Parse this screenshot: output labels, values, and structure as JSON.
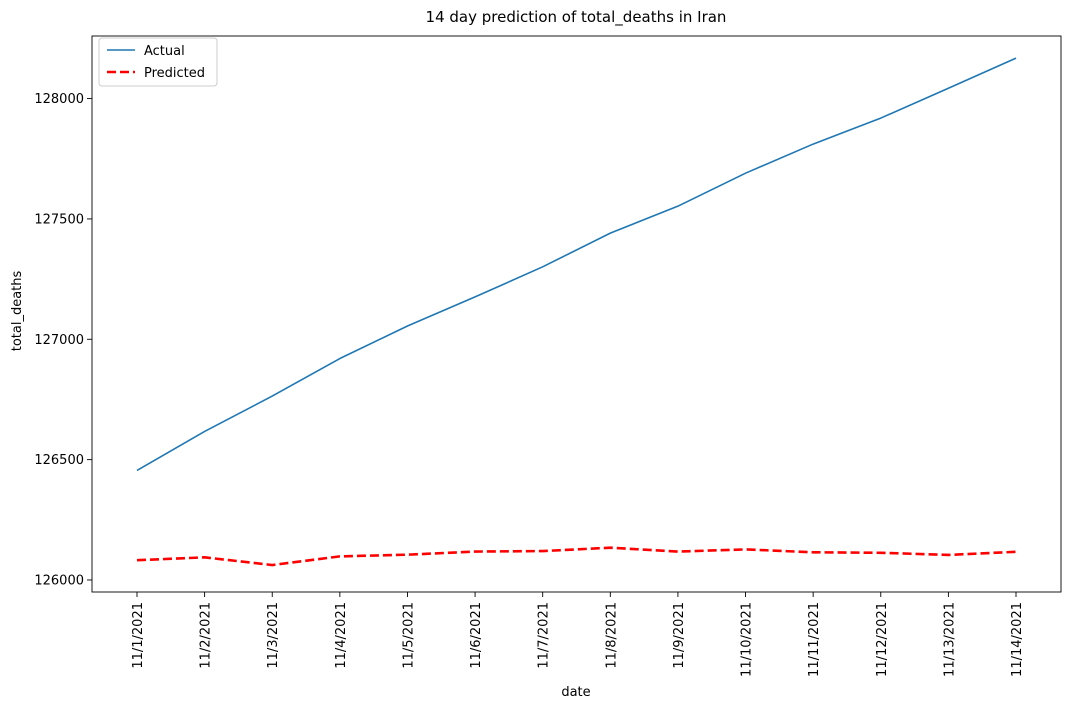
{
  "chart_data": {
    "type": "line",
    "title": "14 day prediction of total_deaths in Iran",
    "xlabel": "date",
    "ylabel": "total_deaths",
    "categories": [
      "11/1/2021",
      "11/2/2021",
      "11/3/2021",
      "11/4/2021",
      "11/5/2021",
      "11/6/2021",
      "11/7/2021",
      "11/8/2021",
      "11/9/2021",
      "11/10/2021",
      "11/11/2021",
      "11/12/2021",
      "11/13/2021",
      "11/14/2021"
    ],
    "yticks": [
      126000,
      126500,
      127000,
      127500,
      128000
    ],
    "ylim": [
      125950,
      128260
    ],
    "grid": false,
    "legend_position": "top-left",
    "series": [
      {
        "name": "Actual",
        "color": "#1f77b4",
        "style": "solid",
        "values": [
          126455,
          126617,
          126764,
          126920,
          127055,
          127176,
          127301,
          127441,
          127553,
          127690,
          127811,
          127919,
          128043,
          128168
        ]
      },
      {
        "name": "Predicted",
        "color": "#ff0000",
        "style": "dashed",
        "values": [
          126082,
          126094,
          126062,
          126098,
          126105,
          126118,
          126120,
          126134,
          126118,
          126127,
          126115,
          126113,
          126104,
          126117
        ]
      }
    ]
  }
}
